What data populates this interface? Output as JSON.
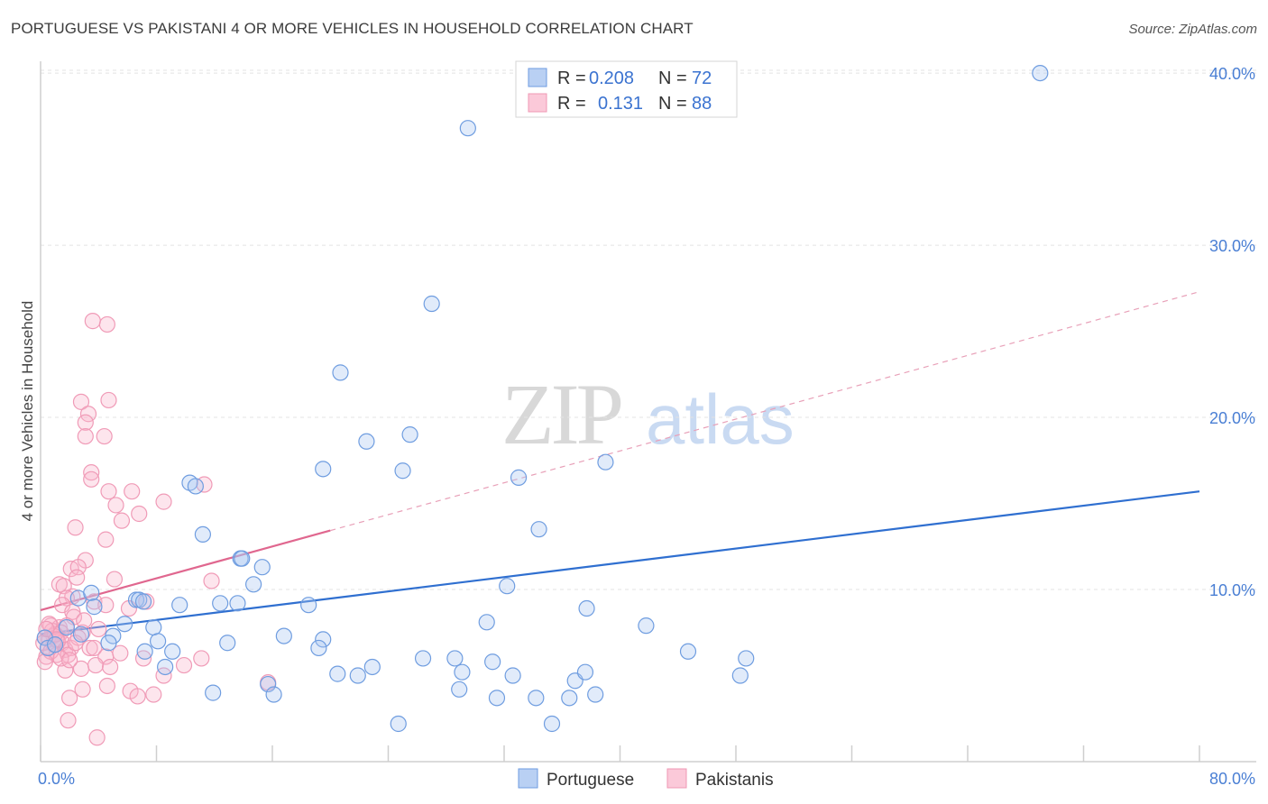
{
  "title": "PORTUGUESE VS PAKISTANI 4 OR MORE VEHICLES IN HOUSEHOLD CORRELATION CHART",
  "source": "Source: ZipAtlas.com",
  "watermark": {
    "zip": "ZIP",
    "atlas": "atlas"
  },
  "legend": {
    "r_label": "R =",
    "n_label": "N =",
    "rows": [
      {
        "series": "Portuguese",
        "r": "0.208",
        "n": "72"
      },
      {
        "series": "Pakistanis",
        "r": "0.131",
        "n": "88"
      }
    ]
  },
  "chart_data": {
    "type": "scatter",
    "title": "PORTUGUESE VS PAKISTANI 4 OR MORE VEHICLES IN HOUSEHOLD CORRELATION CHART",
    "xlabel": "",
    "ylabel": "4 or more Vehicles in Household",
    "xlim": [
      0,
      80
    ],
    "ylim": [
      0,
      41
    ],
    "x_tick_labels": [
      "0.0%",
      "80.0%"
    ],
    "y_ticks": [
      10,
      20,
      30,
      40
    ],
    "y_tick_labels": [
      "10.0%",
      "20.0%",
      "30.0%",
      "40.0%"
    ],
    "grid": true,
    "legend_position": "top-center",
    "colors": {
      "Portuguese": "#5b8fe0",
      "Pakistanis": "#f08aaa",
      "blue_line": "#2f6fd0",
      "pink_line": "#e0678f"
    },
    "series": [
      {
        "name": "Portuguese",
        "r": 0.208,
        "n": 72,
        "trend": {
          "x0": 0,
          "y0": 7.4,
          "x1": 80,
          "y1": 15.7
        },
        "points": [
          [
            69,
            40
          ],
          [
            29.5,
            36.8
          ],
          [
            27,
            26.6
          ],
          [
            20.7,
            22.6
          ],
          [
            22.5,
            18.6
          ],
          [
            25.5,
            19
          ],
          [
            19.5,
            17
          ],
          [
            25,
            16.9
          ],
          [
            33,
            16.5
          ],
          [
            39,
            17.4
          ],
          [
            10.3,
            16.2
          ],
          [
            10.7,
            16
          ],
          [
            11.2,
            13.2
          ],
          [
            34.4,
            13.5
          ],
          [
            13.8,
            11.8
          ],
          [
            13.9,
            11.8
          ],
          [
            15.3,
            11.3
          ],
          [
            14.7,
            10.3
          ],
          [
            32.2,
            10.2
          ],
          [
            6.6,
            9.4
          ],
          [
            6.8,
            9.4
          ],
          [
            7.1,
            9.3
          ],
          [
            9.6,
            9.1
          ],
          [
            12.4,
            9.2
          ],
          [
            13.6,
            9.2
          ],
          [
            18.5,
            9.1
          ],
          [
            37.7,
            8.9
          ],
          [
            2.6,
            9.5
          ],
          [
            3.5,
            9.8
          ],
          [
            3.7,
            9
          ],
          [
            5.8,
            8
          ],
          [
            7.8,
            7.8
          ],
          [
            30.8,
            8.1
          ],
          [
            41.8,
            7.9
          ],
          [
            1.8,
            7.8
          ],
          [
            2.8,
            7.4
          ],
          [
            5,
            7.3
          ],
          [
            8.1,
            7
          ],
          [
            12.9,
            6.9
          ],
          [
            16.8,
            7.3
          ],
          [
            19.5,
            7.1
          ],
          [
            19.2,
            6.6
          ],
          [
            4.7,
            6.9
          ],
          [
            7.2,
            6.4
          ],
          [
            9.1,
            6.4
          ],
          [
            26.4,
            6
          ],
          [
            28.6,
            6
          ],
          [
            31.2,
            5.8
          ],
          [
            44.7,
            6.4
          ],
          [
            48.7,
            6
          ],
          [
            8.6,
            5.5
          ],
          [
            20.5,
            5.1
          ],
          [
            21.9,
            5
          ],
          [
            22.9,
            5.5
          ],
          [
            29.1,
            5.2
          ],
          [
            32.6,
            5
          ],
          [
            36.9,
            4.7
          ],
          [
            37.6,
            5.2
          ],
          [
            48.3,
            5
          ],
          [
            11.9,
            4
          ],
          [
            15.7,
            4.5
          ],
          [
            16.1,
            3.9
          ],
          [
            28.9,
            4.2
          ],
          [
            31.5,
            3.7
          ],
          [
            34.2,
            3.7
          ],
          [
            36.5,
            3.7
          ],
          [
            38.3,
            3.9
          ],
          [
            24.7,
            2.2
          ],
          [
            35.3,
            2.2
          ],
          [
            0.3,
            7.2
          ],
          [
            0.5,
            6.6
          ],
          [
            1.0,
            6.8
          ]
        ]
      },
      {
        "name": "Pakistanis",
        "r": 0.131,
        "n": 88,
        "trend": {
          "x0": 0,
          "y0": 8.8,
          "x1": 80,
          "y1": 27.3
        },
        "trend_solid_until_x": 20,
        "points": [
          [
            3.6,
            25.6
          ],
          [
            4.6,
            25.4
          ],
          [
            2.8,
            20.9
          ],
          [
            4.7,
            21
          ],
          [
            3.3,
            20.2
          ],
          [
            3.1,
            19.7
          ],
          [
            3.1,
            18.9
          ],
          [
            4.4,
            18.9
          ],
          [
            3.5,
            16.8
          ],
          [
            3.5,
            16.4
          ],
          [
            11.3,
            16.1
          ],
          [
            6.3,
            15.7
          ],
          [
            4.7,
            15.7
          ],
          [
            8.5,
            15.1
          ],
          [
            5.2,
            14.9
          ],
          [
            6.8,
            14.4
          ],
          [
            5.6,
            14
          ],
          [
            2.4,
            13.6
          ],
          [
            4.5,
            12.9
          ],
          [
            3.1,
            11.7
          ],
          [
            2.1,
            11.2
          ],
          [
            2.6,
            11.3
          ],
          [
            2.5,
            10.7
          ],
          [
            5.1,
            10.6
          ],
          [
            11.8,
            10.5
          ],
          [
            1.3,
            10.3
          ],
          [
            1.6,
            10.2
          ],
          [
            2.2,
            9.6
          ],
          [
            1.8,
            9.5
          ],
          [
            3.7,
            9.3
          ],
          [
            4.5,
            9.1
          ],
          [
            7.3,
            9.3
          ],
          [
            1.5,
            9.1
          ],
          [
            2.2,
            8.7
          ],
          [
            6.1,
            8.9
          ],
          [
            2.3,
            8.4
          ],
          [
            0.7,
            7.9
          ],
          [
            1.3,
            7.8
          ],
          [
            1.8,
            7.9
          ],
          [
            0.8,
            7.6
          ],
          [
            1.4,
            7.5
          ],
          [
            2.9,
            7.5
          ],
          [
            0.9,
            7.3
          ],
          [
            0.3,
            7.2
          ],
          [
            0.6,
            7.1
          ],
          [
            1.2,
            7
          ],
          [
            1.5,
            6.9
          ],
          [
            0.9,
            6.8
          ],
          [
            0.5,
            6.6
          ],
          [
            1.7,
            6.5
          ],
          [
            2.1,
            6.6
          ],
          [
            3.4,
            6.6
          ],
          [
            1.1,
            6.2
          ],
          [
            1.9,
            6.2
          ],
          [
            0.4,
            6.1
          ],
          [
            3.7,
            6.6
          ],
          [
            4.5,
            6.1
          ],
          [
            7.1,
            6
          ],
          [
            9.9,
            5.6
          ],
          [
            11.1,
            6
          ],
          [
            1.7,
            5.3
          ],
          [
            2.8,
            5.4
          ],
          [
            3.8,
            5.6
          ],
          [
            4.8,
            5.5
          ],
          [
            8.5,
            5
          ],
          [
            15.7,
            4.6
          ],
          [
            2.9,
            4.2
          ],
          [
            4.6,
            4.4
          ],
          [
            6.2,
            4.1
          ],
          [
            6.7,
            3.8
          ],
          [
            7.8,
            3.9
          ],
          [
            2,
            3.7
          ],
          [
            1.9,
            2.4
          ],
          [
            3.9,
            1.4
          ],
          [
            0.2,
            6.9
          ],
          [
            0.7,
            6.4
          ],
          [
            1.0,
            7.4
          ],
          [
            0.3,
            5.8
          ],
          [
            2.6,
            7.2
          ],
          [
            4.0,
            7.7
          ],
          [
            1.4,
            6.0
          ],
          [
            0.6,
            8.0
          ],
          [
            2.0,
            5.9
          ],
          [
            5.5,
            6.3
          ],
          [
            3.0,
            8.2
          ],
          [
            1.1,
            7.1
          ],
          [
            0.4,
            7.7
          ],
          [
            2.4,
            6.9
          ]
        ]
      }
    ]
  }
}
